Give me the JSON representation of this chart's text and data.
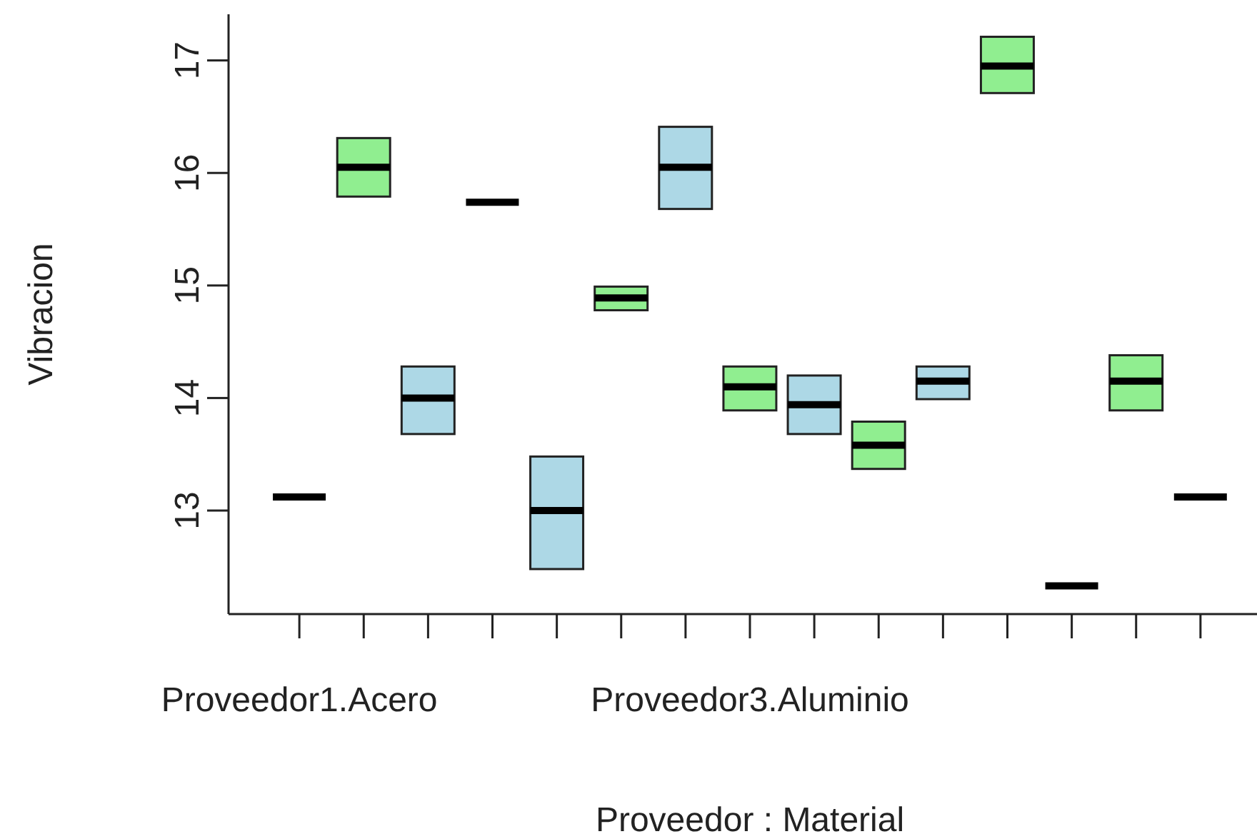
{
  "chart_data": {
    "type": "box",
    "xlabel": "Proveedor : Material",
    "ylabel": "Vibracion",
    "categories": [
      "Proveedor1.Acero",
      null,
      null,
      null,
      null,
      null,
      null,
      "Proveedor3.Aluminio",
      null,
      null,
      null,
      null,
      null,
      null,
      null
    ],
    "colors": [
      "#000000",
      "#90ee90",
      "#add8e6",
      "#000000",
      "#add8e6",
      "#90ee90",
      "#add8e6",
      "#90ee90",
      "#add8e6",
      "#90ee90",
      "#add8e6",
      "#90ee90",
      "#000000",
      "#90ee90",
      "#000000"
    ],
    "boxes": [
      {
        "low": 13.12,
        "q1": 13.12,
        "median": 13.12,
        "q3": 13.12,
        "high": 13.12
      },
      {
        "low": 15.79,
        "q1": 15.79,
        "median": 16.05,
        "q3": 16.31,
        "high": 16.31
      },
      {
        "low": 13.68,
        "q1": 13.68,
        "median": 14.0,
        "q3": 14.28,
        "high": 14.28
      },
      {
        "low": 15.74,
        "q1": 15.74,
        "median": 15.74,
        "q3": 15.74,
        "high": 15.74
      },
      {
        "low": 12.48,
        "q1": 12.48,
        "median": 13.0,
        "q3": 13.48,
        "high": 13.48
      },
      {
        "low": 14.78,
        "q1": 14.78,
        "median": 14.89,
        "q3": 14.99,
        "high": 14.99
      },
      {
        "low": 15.68,
        "q1": 15.68,
        "median": 16.05,
        "q3": 16.41,
        "high": 16.41
      },
      {
        "low": 13.89,
        "q1": 13.89,
        "median": 14.1,
        "q3": 14.28,
        "high": 14.28
      },
      {
        "low": 13.68,
        "q1": 13.68,
        "median": 13.94,
        "q3": 14.2,
        "high": 14.2
      },
      {
        "low": 13.37,
        "q1": 13.37,
        "median": 13.58,
        "q3": 13.79,
        "high": 13.79
      },
      {
        "low": 13.99,
        "q1": 13.99,
        "median": 14.15,
        "q3": 14.28,
        "high": 14.28
      },
      {
        "low": 16.71,
        "q1": 16.71,
        "median": 16.95,
        "q3": 17.21,
        "high": 17.21
      },
      {
        "low": 12.33,
        "q1": 12.33,
        "median": 12.33,
        "q3": 12.33,
        "high": 12.33
      },
      {
        "low": 13.89,
        "q1": 13.89,
        "median": 14.15,
        "q3": 14.38,
        "high": 14.38
      },
      {
        "low": 13.12,
        "q1": 13.12,
        "median": 13.12,
        "q3": 13.12,
        "high": 13.12
      }
    ],
    "ylim": [
      12.08,
      17.41
    ],
    "yticks": [
      13,
      14,
      15,
      16,
      17
    ],
    "grid": false,
    "legend": false
  }
}
